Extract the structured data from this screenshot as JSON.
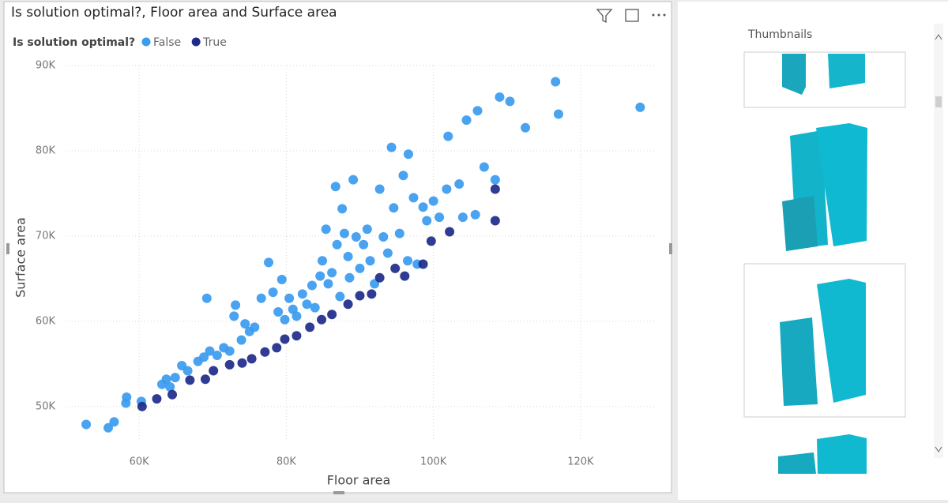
{
  "chart_data": {
    "type": "scatter",
    "title": "Is solution optimal?, Floor area and Surface area",
    "legend_title": "Is solution optimal?",
    "x_label": "Floor area",
    "y_label": "Surface area",
    "xlim": [
      50000,
      130000
    ],
    "ylim": [
      46000,
      90000
    ],
    "xticks": [
      {
        "value": 60000,
        "label": "60K"
      },
      {
        "value": 80000,
        "label": "80K"
      },
      {
        "value": 100000,
        "label": "100K"
      },
      {
        "value": 120000,
        "label": "120K"
      }
    ],
    "yticks": [
      {
        "value": 50000,
        "label": "50K"
      },
      {
        "value": 60000,
        "label": "60K"
      },
      {
        "value": 70000,
        "label": "70K"
      },
      {
        "value": 80000,
        "label": "80K"
      },
      {
        "value": 90000,
        "label": "90K"
      }
    ],
    "grid": true,
    "series": [
      {
        "name": "False",
        "color": "#3a9bef",
        "x": [
          52800,
          55800,
          56600,
          58300,
          58200,
          60300,
          63100,
          63700,
          64200,
          64900,
          65800,
          66600,
          68000,
          69200,
          68800,
          69600,
          70600,
          71500,
          72300,
          73100,
          72900,
          73900,
          74400,
          75000,
          75700,
          76600,
          77600,
          78200,
          78900,
          79400,
          79800,
          80400,
          80900,
          81400,
          82200,
          82800,
          83500,
          83900,
          84600,
          84900,
          85400,
          85700,
          86200,
          86700,
          86900,
          87300,
          87600,
          87900,
          88400,
          88600,
          89100,
          89500,
          90000,
          90500,
          91000,
          91400,
          92000,
          92700,
          93200,
          93800,
          94300,
          94600,
          95400,
          95900,
          96500,
          96600,
          97300,
          97800,
          98600,
          99100,
          100000,
          100800,
          101800,
          102000,
          103500,
          104000,
          104500,
          105700,
          106000,
          106900,
          108400,
          109000,
          110400,
          112500,
          116600,
          117000,
          128100
        ],
        "values": [
          47900,
          47500,
          48200,
          51100,
          50400,
          50600,
          52600,
          53200,
          52300,
          53400,
          54800,
          54200,
          55300,
          62700,
          55800,
          56500,
          56000,
          56900,
          56500,
          61900,
          60600,
          57800,
          59700,
          58800,
          59300,
          62700,
          66900,
          63400,
          61100,
          64900,
          60200,
          62700,
          61400,
          60600,
          63200,
          62000,
          64200,
          61600,
          65300,
          67100,
          70800,
          64400,
          65700,
          75800,
          69000,
          62900,
          73200,
          70300,
          67600,
          65100,
          76600,
          69900,
          66200,
          69000,
          70800,
          67100,
          64400,
          75500,
          69900,
          68000,
          80400,
          73300,
          70300,
          77100,
          67100,
          79600,
          74500,
          66700,
          73400,
          71800,
          74100,
          72200,
          75500,
          81700,
          76100,
          72200,
          83600,
          72500,
          84700,
          78100,
          76600,
          86300,
          85800,
          82700,
          88100,
          84300,
          85100
        ]
      },
      {
        "name": "True",
        "color": "#1e2a8a",
        "x": [
          60400,
          62400,
          64500,
          66900,
          69000,
          70100,
          72300,
          74000,
          75300,
          77100,
          78700,
          79800,
          81400,
          83200,
          84800,
          86200,
          88400,
          90000,
          91600,
          92700,
          94800,
          96100,
          98600,
          99700,
          102200,
          108400,
          108400
        ],
        "values": [
          50000,
          50900,
          51400,
          53100,
          53200,
          54200,
          54900,
          55100,
          55600,
          56400,
          56900,
          57900,
          58300,
          59300,
          60200,
          60800,
          62000,
          63000,
          63200,
          65100,
          66200,
          65300,
          66700,
          69400,
          70500,
          75500,
          71800
        ]
      }
    ]
  },
  "thumbnails_panel": {
    "title": "Thumbnails"
  }
}
